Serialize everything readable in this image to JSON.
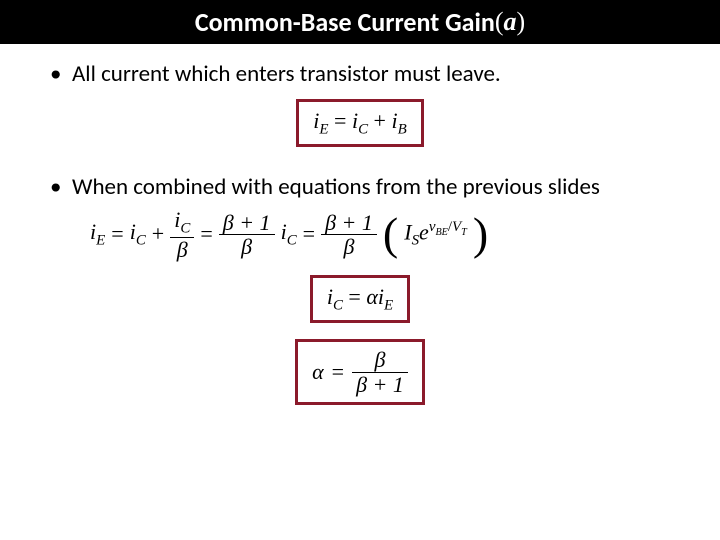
{
  "title": {
    "prefix_bold": "Common-Base Current Gain ",
    "open_paren": "(",
    "symbol": "a",
    "close_paren": ")"
  },
  "bullets": {
    "b1": "All current which enters transistor must leave.",
    "b2": "When combined with equations from the previous slides"
  },
  "eq1": {
    "iE": "i",
    "iE_sub": "E",
    "eq": " = ",
    "iC": "i",
    "iC_sub": "C",
    "plus": " + ",
    "iB": "i",
    "iB_sub": "B"
  },
  "eq2": {
    "iE": "i",
    "iE_sub": "E",
    "eq1": " = ",
    "iC": "i",
    "iC_sub": "C",
    "plus": " + ",
    "frac1_num_i": "i",
    "frac1_num_sub": "C",
    "frac1_den": "β",
    "eq2": " = ",
    "frac2_num": "β + 1",
    "frac2_den": "β",
    "iC2": "i",
    "iC2_sub": "C",
    "eq3": " = ",
    "frac3_num": "β + 1",
    "frac3_den": "β",
    "Is": "I",
    "Is_sub": "S",
    "e": "e",
    "exp_num_v": "v",
    "exp_num_sub": "BE",
    "exp_slash": "/",
    "exp_den": "V",
    "exp_den_sub": "T"
  },
  "eq3": {
    "iC": "i",
    "iC_sub": "C",
    "eq": " = ",
    "alpha": "α",
    "iE": "i",
    "iE_sub": "E"
  },
  "eq4": {
    "alpha": "α",
    "eq": " = ",
    "num": "β",
    "den": "β + 1"
  },
  "colors": {
    "box_border": "#8b1a2b",
    "title_bg": "#000000",
    "title_fg": "#ffffff",
    "text": "#000000",
    "background": "#ffffff"
  }
}
